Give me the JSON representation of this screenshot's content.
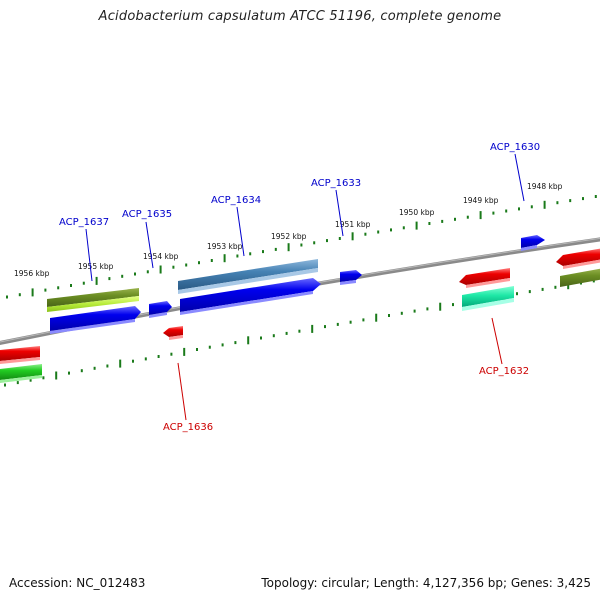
{
  "header": {
    "title": "Acidobacterium capsulatum ATCC 51196, complete genome"
  },
  "footer": {
    "accession": "Accession: NC_012483",
    "topology": "Topology: circular; Length: 4,127,356 bp; Genes: 3,425"
  },
  "colors": {
    "forward_gene": "#0000ee",
    "forward_label": "#0000cc",
    "reverse_gene": "#ee0000",
    "reverse_label": "#cc0000",
    "tick": "#1a7a1a",
    "backbone": "#808080",
    "olive": "#6b8e23",
    "steel": "#4682b4",
    "spring": "#00e0a0",
    "green": "#22cc22",
    "lime": "#aadd22"
  },
  "ruler_labels": [
    "1956 kbp",
    "1955 kbp",
    "1954 kbp",
    "1953 kbp",
    "1952 kbp",
    "1951 kbp",
    "1950 kbp",
    "1949 kbp",
    "1948 kbp"
  ],
  "forward_gene_labels": [
    "ACP_1637",
    "ACP_1635",
    "ACP_1634",
    "ACP_1633",
    "ACP_1630"
  ],
  "reverse_gene_labels": [
    "ACP_1636",
    "ACP_1632"
  ]
}
